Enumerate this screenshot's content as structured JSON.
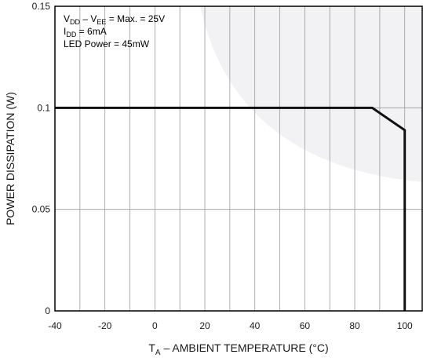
{
  "chart_data": {
    "type": "line",
    "xlabel": {
      "main": "T",
      "sub": "A",
      "rest": " – AMBIENT TEMPERATURE (°C)"
    },
    "ylabel": "POWER DISSIPATION (W)",
    "xlim": [
      -40,
      100
    ],
    "ylim": [
      0,
      0.15
    ],
    "x_ticks": [
      "-40",
      "-20",
      "0",
      "20",
      "40",
      "60",
      "80",
      "100"
    ],
    "x_tick_values": [
      -40,
      -20,
      0,
      20,
      40,
      60,
      80,
      100
    ],
    "y_ticks": [
      "0",
      "0.05",
      "0.1",
      "0.15"
    ],
    "y_tick_values": [
      0,
      0.05,
      0.1,
      0.15
    ],
    "x_minor_grid": [
      -30,
      -10,
      10,
      30,
      50,
      70,
      90
    ],
    "grid": true,
    "series": [
      {
        "x": [
          -40,
          87,
          100,
          100
        ],
        "y": [
          0.1,
          0.1,
          0.089,
          0
        ],
        "color": "#111111"
      }
    ],
    "annotations": [
      {
        "parts": [
          [
            "V",
            ""
          ],
          [
            "DD",
            "sub"
          ],
          [
            " – V",
            ""
          ],
          [
            "EE",
            "sub"
          ],
          [
            " = Max. = 25V",
            ""
          ]
        ]
      },
      {
        "parts": [
          [
            "I",
            ""
          ],
          [
            "DD",
            "sub"
          ],
          [
            " = 6mA",
            ""
          ]
        ]
      },
      {
        "parts": [
          [
            "LED Power = 45mW",
            ""
          ]
        ]
      }
    ],
    "annotation_placement": "top-left"
  }
}
